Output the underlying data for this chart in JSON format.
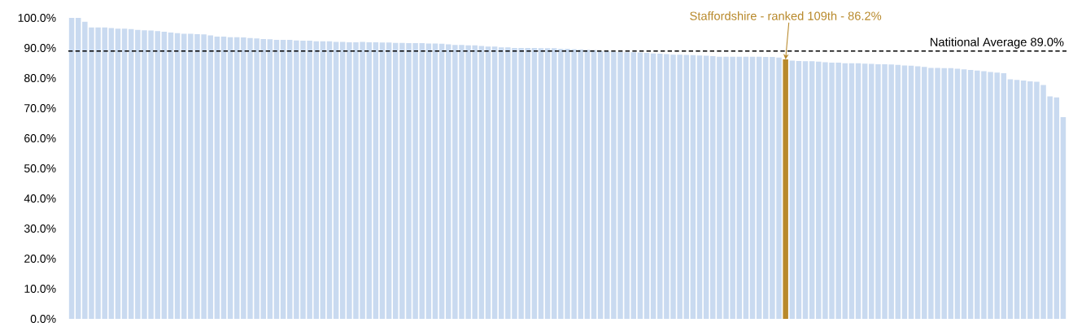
{
  "chart_data": {
    "type": "bar",
    "categories": [
      null,
      null,
      null,
      null,
      null,
      null,
      null,
      null,
      null,
      null,
      null,
      null,
      null,
      null,
      null,
      null,
      null,
      null,
      null,
      null,
      null,
      null,
      null,
      null,
      null,
      null,
      null,
      null,
      null,
      null,
      null,
      null,
      null,
      null,
      null,
      null,
      null,
      null,
      null,
      null,
      null,
      null,
      null,
      null,
      null,
      null,
      null,
      null,
      null,
      null,
      null,
      null,
      null,
      null,
      null,
      null,
      null,
      null,
      null,
      null,
      null,
      null,
      null,
      null,
      null,
      null,
      null,
      null,
      null,
      null,
      null,
      null,
      null,
      null,
      null,
      null,
      null,
      null,
      null,
      null,
      null,
      null,
      null,
      null,
      null,
      null,
      null,
      null,
      null,
      null,
      null,
      null,
      null,
      null,
      null,
      null,
      null,
      null,
      null,
      null,
      null,
      null,
      null,
      null,
      null,
      null,
      null,
      null,
      null,
      null,
      null,
      null,
      null,
      null,
      null,
      null,
      null,
      null,
      null,
      null,
      null,
      null,
      null,
      null,
      null,
      null,
      null,
      null,
      null,
      null,
      null,
      null,
      null,
      null,
      null,
      null,
      null,
      null,
      null,
      null,
      null,
      null,
      null,
      null,
      null,
      null,
      null,
      null,
      null,
      null,
      null
    ],
    "values": [
      100.0,
      100.0,
      98.7,
      96.8,
      96.8,
      96.8,
      96.6,
      96.4,
      96.4,
      96.3,
      96.0,
      95.9,
      95.8,
      95.6,
      95.4,
      95.1,
      94.9,
      94.7,
      94.7,
      94.6,
      94.5,
      94.2,
      93.8,
      93.8,
      93.6,
      93.6,
      93.5,
      93.3,
      93.2,
      93.0,
      92.9,
      92.7,
      92.7,
      92.7,
      92.5,
      92.4,
      92.4,
      92.2,
      92.2,
      92.2,
      92.0,
      92.0,
      91.9,
      91.9,
      92.0,
      91.9,
      91.9,
      91.8,
      91.8,
      91.7,
      91.7,
      91.6,
      91.6,
      91.6,
      91.5,
      91.5,
      91.4,
      91.2,
      91.0,
      91.0,
      90.9,
      90.9,
      90.7,
      90.5,
      90.5,
      90.2,
      90.2,
      90.0,
      90.0,
      90.0,
      90.0,
      89.9,
      89.9,
      89.9,
      89.7,
      89.7,
      89.6,
      89.5,
      89.4,
      89.3,
      89.0,
      88.9,
      88.8,
      88.7,
      88.6,
      88.6,
      88.5,
      88.4,
      88.2,
      88.1,
      88.0,
      87.8,
      87.8,
      87.7,
      87.6,
      87.5,
      87.4,
      87.3,
      87.1,
      87.1,
      87.1,
      87.1,
      87.1,
      87.1,
      87.1,
      87.0,
      87.0,
      86.8,
      86.2,
      85.8,
      85.7,
      85.6,
      85.6,
      85.5,
      85.3,
      85.1,
      85.1,
      84.9,
      84.9,
      84.9,
      84.8,
      84.7,
      84.6,
      84.6,
      84.5,
      84.4,
      84.2,
      84.1,
      83.9,
      83.7,
      83.4,
      83.4,
      83.3,
      83.3,
      83.1,
      82.9,
      82.7,
      82.5,
      82.3,
      82.0,
      81.8,
      81.6,
      79.6,
      79.4,
      79.2,
      78.9,
      78.8,
      77.7,
      73.9,
      73.6,
      67.0
    ],
    "colors": [
      "#c9daf0",
      "#c9daf0",
      "#c9daf0",
      "#c9daf0",
      "#c9daf0",
      "#c9daf0",
      "#c9daf0",
      "#c9daf0",
      "#c9daf0",
      "#c9daf0",
      "#c9daf0",
      "#c9daf0",
      "#c9daf0",
      "#c9daf0",
      "#c9daf0",
      "#c9daf0",
      "#c9daf0",
      "#c9daf0",
      "#c9daf0",
      "#c9daf0",
      "#c9daf0",
      "#c9daf0",
      "#c9daf0",
      "#c9daf0",
      "#c9daf0",
      "#c9daf0",
      "#c9daf0",
      "#c9daf0",
      "#c9daf0",
      "#c9daf0",
      "#c9daf0",
      "#c9daf0",
      "#c9daf0",
      "#c9daf0",
      "#c9daf0",
      "#c9daf0",
      "#c9daf0",
      "#c9daf0",
      "#c9daf0",
      "#c9daf0",
      "#c9daf0",
      "#c9daf0",
      "#c9daf0",
      "#c9daf0",
      "#c9daf0",
      "#c9daf0",
      "#c9daf0",
      "#c9daf0",
      "#c9daf0",
      "#c9daf0",
      "#c9daf0",
      "#c9daf0",
      "#c9daf0",
      "#c9daf0",
      "#c9daf0",
      "#c9daf0",
      "#c9daf0",
      "#c9daf0",
      "#c9daf0",
      "#c9daf0",
      "#c9daf0",
      "#c9daf0",
      "#c9daf0",
      "#c9daf0",
      "#c9daf0",
      "#c9daf0",
      "#c9daf0",
      "#c9daf0",
      "#c9daf0",
      "#c9daf0",
      "#c9daf0",
      "#c9daf0",
      "#c9daf0",
      "#c9daf0",
      "#c9daf0",
      "#c9daf0",
      "#c9daf0",
      "#c9daf0",
      "#c9daf0",
      "#c9daf0",
      "#c9daf0",
      "#c9daf0",
      "#c9daf0",
      "#c9daf0",
      "#c9daf0",
      "#c9daf0",
      "#c9daf0",
      "#c9daf0",
      "#c9daf0",
      "#c9daf0",
      "#c9daf0",
      "#c9daf0",
      "#c9daf0",
      "#c9daf0",
      "#c9daf0",
      "#c9daf0",
      "#c9daf0",
      "#c9daf0",
      "#c9daf0",
      "#c9daf0",
      "#c9daf0",
      "#c9daf0",
      "#c9daf0",
      "#c9daf0",
      "#c9daf0",
      "#c9daf0",
      "#c9daf0",
      "#c9daf0",
      "#b8892b",
      "#c9daf0",
      "#c9daf0",
      "#c9daf0",
      "#c9daf0",
      "#c9daf0",
      "#c9daf0",
      "#c9daf0",
      "#c9daf0",
      "#c9daf0",
      "#c9daf0",
      "#c9daf0",
      "#c9daf0",
      "#c9daf0",
      "#c9daf0",
      "#c9daf0",
      "#c9daf0",
      "#c9daf0",
      "#c9daf0",
      "#c9daf0",
      "#c9daf0",
      "#c9daf0",
      "#c9daf0",
      "#c9daf0",
      "#c9daf0",
      "#c9daf0",
      "#c9daf0",
      "#c9daf0",
      "#c9daf0",
      "#c9daf0",
      "#c9daf0",
      "#c9daf0",
      "#c9daf0",
      "#c9daf0",
      "#c9daf0",
      "#c9daf0",
      "#c9daf0",
      "#c9daf0",
      "#c9daf0",
      "#c9daf0",
      "#c9daf0",
      "#c9daf0",
      "#c9daf0"
    ],
    "ylim": [
      0,
      100
    ],
    "yticks": [
      {
        "value": 0,
        "label": "0.0%"
      },
      {
        "value": 10,
        "label": "10.0%"
      },
      {
        "value": 20,
        "label": "20.0%"
      },
      {
        "value": 30,
        "label": "30.0%"
      },
      {
        "value": 40,
        "label": "40.0%"
      },
      {
        "value": 50,
        "label": "50.0%"
      },
      {
        "value": 60,
        "label": "60.0%"
      },
      {
        "value": 70,
        "label": "70.0%"
      },
      {
        "value": 80,
        "label": "80.0%"
      },
      {
        "value": 90,
        "label": "90.0%"
      },
      {
        "value": 100,
        "label": "100.0%"
      }
    ],
    "tick_labels": "y",
    "ref_lines": [
      {
        "axis": "y",
        "value": 89.0,
        "label": "Natitional Average 89.0%",
        "color": "#000000",
        "line_style": "dashed"
      }
    ],
    "annotations": [
      {
        "text": "Staffordshire - ranked 109th - 86.2%",
        "y": 86.2
      }
    ]
  }
}
